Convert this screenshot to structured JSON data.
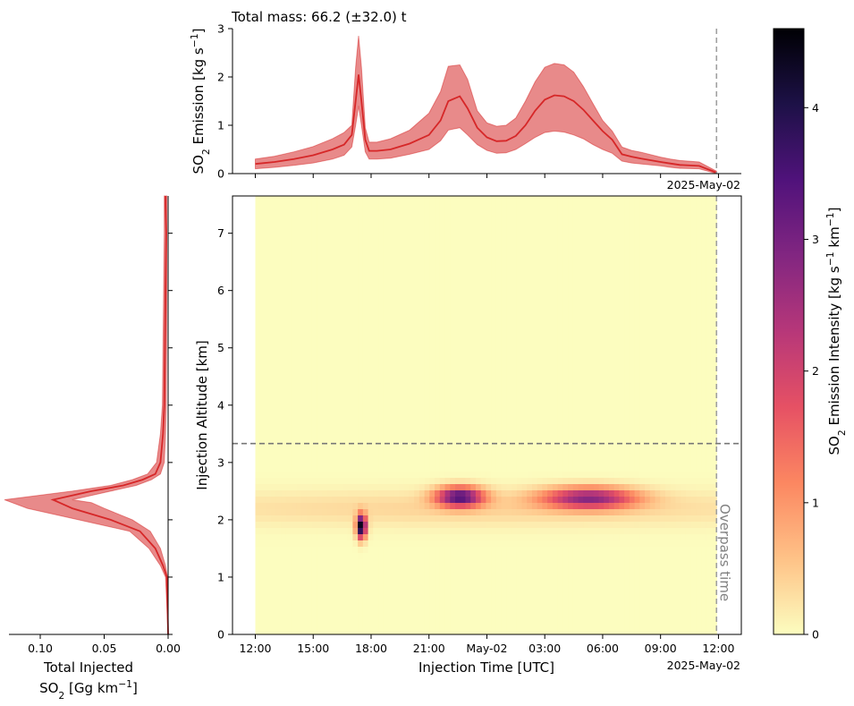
{
  "chart_data": [
    {
      "id": "top",
      "type": "line",
      "title": "Total mass: 66.2 (±32.0) t",
      "ylabel_parts": [
        "SO",
        "2",
        " Emission [kg s",
        "−1",
        "]"
      ],
      "ylim": [
        0,
        3
      ],
      "yticks": [
        0,
        1,
        2,
        3
      ],
      "x_annotation": "2025-May-02",
      "series": [
        {
          "color": "#d62728",
          "fill": "#e88a8a",
          "x_hours": [
            0.0,
            1.0,
            2.0,
            3.0,
            4.0,
            4.6,
            5.0,
            5.2,
            5.35,
            5.5,
            5.7,
            5.9,
            6.3,
            7.0,
            8.0,
            9.0,
            9.6,
            10.0,
            10.6,
            11.0,
            11.5,
            12.0,
            12.5,
            13.0,
            13.5,
            14.0,
            14.5,
            15.0,
            15.5,
            16.0,
            16.5,
            17.0,
            17.5,
            18.0,
            18.5,
            19.0,
            19.5,
            20.0,
            21.0,
            21.5,
            22.0,
            23.0,
            23.9
          ],
          "mean": [
            0.2,
            0.24,
            0.3,
            0.38,
            0.5,
            0.6,
            0.8,
            1.5,
            2.05,
            1.5,
            0.7,
            0.47,
            0.47,
            0.5,
            0.62,
            0.8,
            1.1,
            1.5,
            1.6,
            1.35,
            0.95,
            0.75,
            0.67,
            0.68,
            0.78,
            1.0,
            1.3,
            1.53,
            1.62,
            1.6,
            1.5,
            1.32,
            1.1,
            0.88,
            0.7,
            0.4,
            0.35,
            0.31,
            0.24,
            0.21,
            0.18,
            0.16,
            0.02
          ],
          "upper": [
            0.3,
            0.36,
            0.45,
            0.56,
            0.72,
            0.85,
            1.0,
            2.2,
            2.85,
            2.2,
            0.95,
            0.65,
            0.65,
            0.72,
            0.9,
            1.25,
            1.7,
            2.22,
            2.25,
            1.95,
            1.3,
            1.05,
            0.98,
            1.0,
            1.15,
            1.5,
            1.9,
            2.2,
            2.28,
            2.25,
            2.1,
            1.8,
            1.45,
            1.1,
            0.88,
            0.55,
            0.48,
            0.44,
            0.34,
            0.3,
            0.27,
            0.24,
            0.05
          ],
          "lower": [
            0.1,
            0.13,
            0.17,
            0.22,
            0.3,
            0.38,
            0.55,
            1.0,
            1.4,
            1.0,
            0.45,
            0.3,
            0.3,
            0.32,
            0.4,
            0.5,
            0.68,
            0.9,
            0.95,
            0.8,
            0.6,
            0.48,
            0.42,
            0.43,
            0.5,
            0.62,
            0.75,
            0.85,
            0.88,
            0.86,
            0.8,
            0.72,
            0.6,
            0.5,
            0.42,
            0.26,
            0.22,
            0.2,
            0.16,
            0.13,
            0.11,
            0.1,
            0.0
          ]
        }
      ]
    },
    {
      "id": "left",
      "type": "line",
      "xlabel_line1": "Total Injected",
      "xlabel_line2_parts": [
        "SO",
        "2",
        " [Gg km",
        "−1",
        "]"
      ],
      "xlim": [
        0.13,
        0.0
      ],
      "xticks": [
        0.1,
        0.05,
        0.0
      ],
      "xtick_labels": [
        "0.10",
        "0.05",
        "0.00"
      ],
      "ylim": [
        0,
        7.65
      ],
      "series": [
        {
          "color": "#d62728",
          "fill": "#e88a8a",
          "alt_km": [
            0.0,
            1.0,
            1.2,
            1.5,
            1.8,
            2.0,
            2.2,
            2.3,
            2.35,
            2.5,
            2.6,
            2.7,
            2.8,
            3.0,
            3.5,
            4.0,
            5.0,
            6.0,
            7.0,
            7.5,
            7.65
          ],
          "mean": [
            0.0,
            0.001,
            0.004,
            0.01,
            0.022,
            0.045,
            0.075,
            0.085,
            0.09,
            0.06,
            0.035,
            0.02,
            0.01,
            0.006,
            0.004,
            0.003,
            0.0025,
            0.002,
            0.0015,
            0.002,
            0.002
          ],
          "upper": [
            0.0,
            0.002,
            0.006,
            0.015,
            0.03,
            0.07,
            0.11,
            0.122,
            0.128,
            0.075,
            0.045,
            0.028,
            0.016,
            0.009,
            0.006,
            0.0045,
            0.004,
            0.0035,
            0.003,
            0.003,
            0.003
          ],
          "lower": [
            0.0,
            0.0005,
            0.002,
            0.006,
            0.014,
            0.028,
            0.05,
            0.06,
            0.075,
            0.045,
            0.025,
            0.013,
            0.006,
            0.003,
            0.002,
            0.0015,
            0.0012,
            0.001,
            0.001,
            0.001,
            0.001
          ]
        }
      ]
    },
    {
      "id": "main",
      "type": "heatmap",
      "xlabel": "Injection Time [UTC]",
      "ylabel": "Injection Altitude [km]",
      "xtick_labels": [
        "12:00",
        "15:00",
        "18:00",
        "21:00",
        "May-02",
        "03:00",
        "06:00",
        "09:00",
        "12:00"
      ],
      "x_annotation": "2025-May-02",
      "ylim": [
        0,
        7.65
      ],
      "yticks": [
        0,
        1,
        2,
        3,
        4,
        5,
        6,
        7
      ],
      "hline_km": 3.33,
      "overpass_label": "Overpass time",
      "data_x_hours": [
        0,
        23.9
      ],
      "blobs": [
        {
          "t_hours": 5.5,
          "alt_km": 1.88,
          "sigma_t_hours": 0.17,
          "sigma_alt_km": 0.14,
          "peak": 4.6
        },
        {
          "t_hours": 10.6,
          "alt_km": 2.4,
          "sigma_t_hours": 0.85,
          "sigma_alt_km": 0.12,
          "peak": 3.3
        },
        {
          "t_hours": 17.3,
          "alt_km": 2.38,
          "sigma_t_hours": 1.7,
          "sigma_alt_km": 0.13,
          "peak": 2.6
        }
      ],
      "background_band": {
        "alt_km": 2.2,
        "sigma_alt_km": 0.22,
        "level": 0.4
      }
    },
    {
      "id": "colorbar",
      "type": "heatmap",
      "label_parts": [
        "SO",
        "2",
        " Emission Intensity [kg s",
        "−1",
        " km",
        "−1",
        "]"
      ],
      "lim": [
        0,
        4.6
      ],
      "ticks": [
        0,
        1,
        2,
        3,
        4
      ],
      "colormap": "magma_r",
      "colormap_stops": [
        "#fcfdbf",
        "#fec287",
        "#fc8761",
        "#e65164",
        "#b73779",
        "#822681",
        "#50127b",
        "#1d1147",
        "#000004"
      ]
    }
  ]
}
